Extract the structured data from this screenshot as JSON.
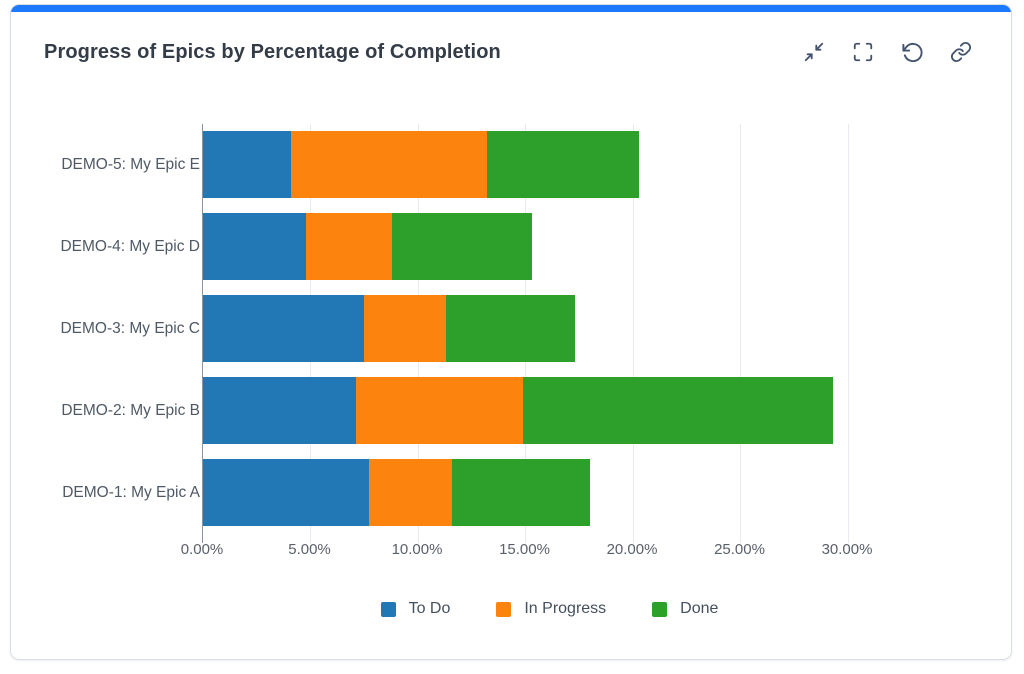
{
  "header": {
    "title": "Progress of Epics by Percentage of Completion",
    "actions": [
      {
        "icon": "collapse-icon"
      },
      {
        "icon": "fullscreen-icon"
      },
      {
        "icon": "refresh-icon"
      },
      {
        "icon": "link-icon"
      }
    ]
  },
  "theme": {
    "accent": "#1d7afc",
    "icon_color": "#44546f",
    "axis_line_color": "#8b94a1",
    "gridline_color": "#e7eaee"
  },
  "chart_data": {
    "type": "bar",
    "orientation": "horizontal",
    "stacked": true,
    "title": "Progress of Epics by Percentage of Completion",
    "categories": [
      "DEMO-5: My Epic E",
      "DEMO-4: My Epic D",
      "DEMO-3: My Epic C",
      "DEMO-2: My Epic B",
      "DEMO-1: My Epic A"
    ],
    "categories_order": "top-to-bottom",
    "series": [
      {
        "name": "To Do",
        "color": "#2278b5",
        "values": [
          4.1,
          4.8,
          7.5,
          7.1,
          7.7
        ]
      },
      {
        "name": "In Progress",
        "color": "#fc830e",
        "values": [
          9.1,
          4.0,
          3.8,
          7.8,
          3.9
        ]
      },
      {
        "name": "Done",
        "color": "#2da02c",
        "values": [
          7.1,
          6.5,
          6.0,
          14.4,
          6.4
        ]
      }
    ],
    "value_unit": "percent",
    "xlabel": "",
    "ylabel": "",
    "xlim": [
      0,
      32
    ],
    "x_tick_values": [
      0,
      5,
      10,
      15,
      20,
      25,
      30
    ],
    "x_tick_labels": [
      "0.00%",
      "5.00%",
      "10.00%",
      "15.00%",
      "20.00%",
      "25.00%",
      "30.00%"
    ],
    "grid": true,
    "legend_position": "bottom"
  }
}
